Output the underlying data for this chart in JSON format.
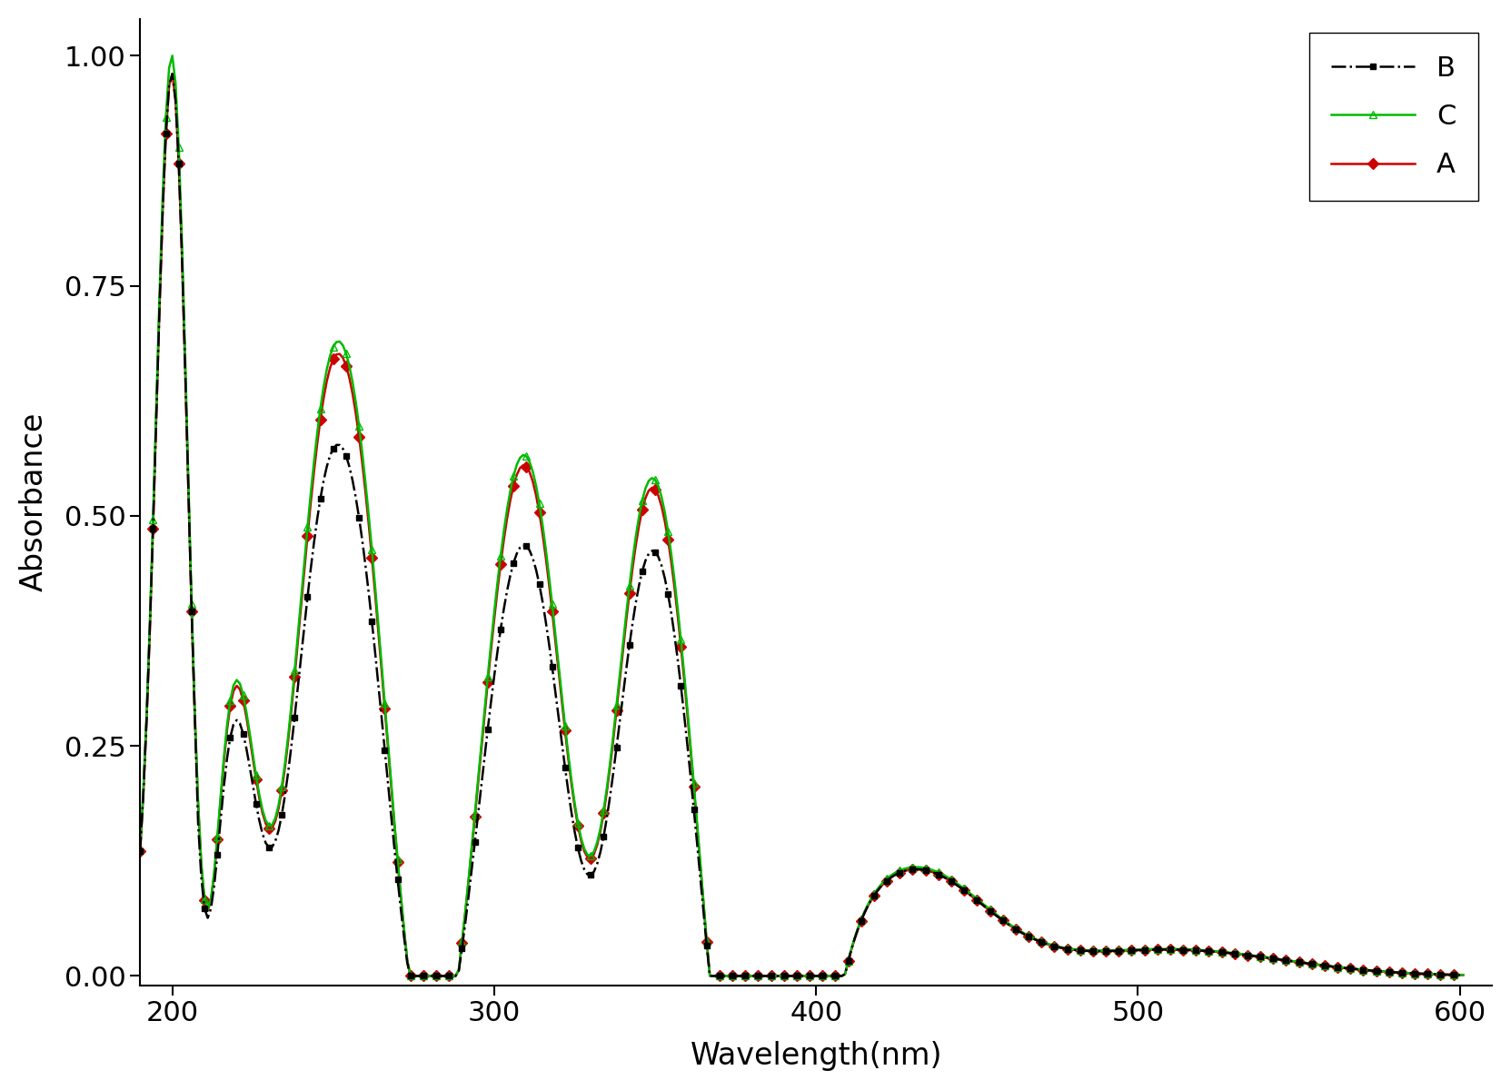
{
  "title": "",
  "xlabel": "Wavelength(nm)",
  "ylabel": "Absorbance",
  "xlim": [
    190,
    610
  ],
  "ylim": [
    -0.01,
    1.04
  ],
  "xticks": [
    200,
    300,
    400,
    500,
    600
  ],
  "yticks": [
    0.0,
    0.25,
    0.5,
    0.75,
    1.0
  ],
  "series": {
    "B": {
      "color": "#000000",
      "linestyle": "-.",
      "marker": "s",
      "markersize": 5,
      "markerfacecolor": "#000000",
      "markeredgecolor": "#000000"
    },
    "C": {
      "color": "#00bb00",
      "linestyle": "-",
      "marker": "^",
      "markersize": 6,
      "markerfacecolor": "none",
      "markeredgecolor": "#00bb00"
    },
    "A": {
      "color": "#cc0000",
      "linestyle": "-",
      "marker": "D",
      "markersize": 6,
      "markerfacecolor": "#cc0000",
      "markeredgecolor": "#cc0000"
    }
  },
  "legend_loc": "upper right",
  "legend_fontsize": 22,
  "axis_fontsize": 24,
  "tick_fontsize": 22,
  "background_color": "#ffffff",
  "figure_bg": "#ffffff"
}
